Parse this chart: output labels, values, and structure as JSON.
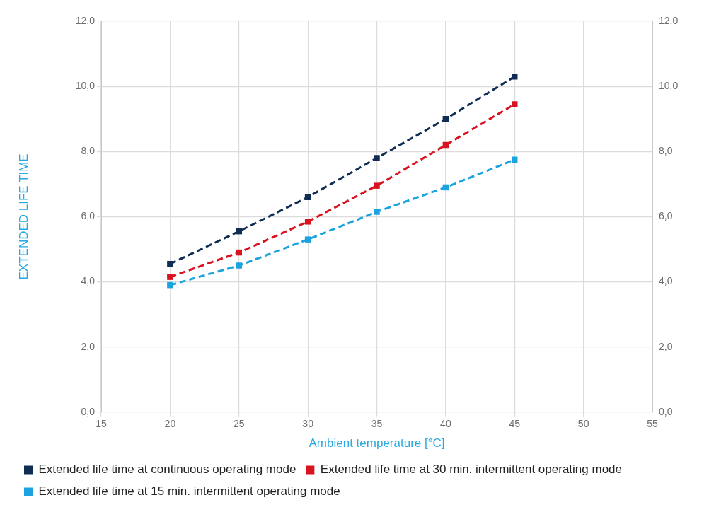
{
  "chart_data": {
    "type": "line",
    "xlabel": "Ambient temperature [°C]",
    "ylabel": "EXTENDED LIFE TIME",
    "x": [
      20,
      25,
      30,
      35,
      40,
      45
    ],
    "series": [
      {
        "name": "Extended life time at continuous operating mode",
        "color": "#0f2d52",
        "values": [
          4.55,
          5.55,
          6.6,
          7.8,
          9.0,
          10.3
        ]
      },
      {
        "name": "Extended life time at 30 min. intermittent operating mode",
        "color": "#d8121f",
        "values": [
          4.15,
          4.9,
          5.85,
          6.95,
          8.2,
          9.45
        ]
      },
      {
        "name": "Extended life time at 15 min. intermittent operating mode",
        "color": "#1ba3e0",
        "values": [
          3.9,
          4.5,
          5.3,
          6.15,
          6.9,
          7.75
        ]
      }
    ],
    "xlim": [
      15,
      55
    ],
    "xticks": [
      15,
      20,
      25,
      30,
      35,
      40,
      45,
      50,
      55
    ],
    "ylim": [
      0,
      12
    ],
    "yticks": [
      {
        "value": 0,
        "label": "0,0"
      },
      {
        "value": 2,
        "label": "2,0"
      },
      {
        "value": 4,
        "label": "4,0"
      },
      {
        "value": 6,
        "label": "6,0"
      },
      {
        "value": 8,
        "label": "8,0"
      },
      {
        "value": 10,
        "label": "10,0"
      },
      {
        "value": 12,
        "label": "12,0"
      }
    ],
    "y2lim": [
      0,
      12
    ],
    "y2ticks": [
      {
        "value": 0,
        "label": "0,0"
      },
      {
        "value": 2,
        "label": "2,0"
      },
      {
        "value": 4,
        "label": "4,0"
      },
      {
        "value": 6,
        "label": "6,0"
      },
      {
        "value": 8,
        "label": "8,0"
      },
      {
        "value": 10,
        "label": "10,0"
      },
      {
        "value": 12,
        "label": "12,0"
      }
    ],
    "grid": true,
    "legend": "bottom",
    "marker": "square",
    "line_style": "dashed"
  }
}
